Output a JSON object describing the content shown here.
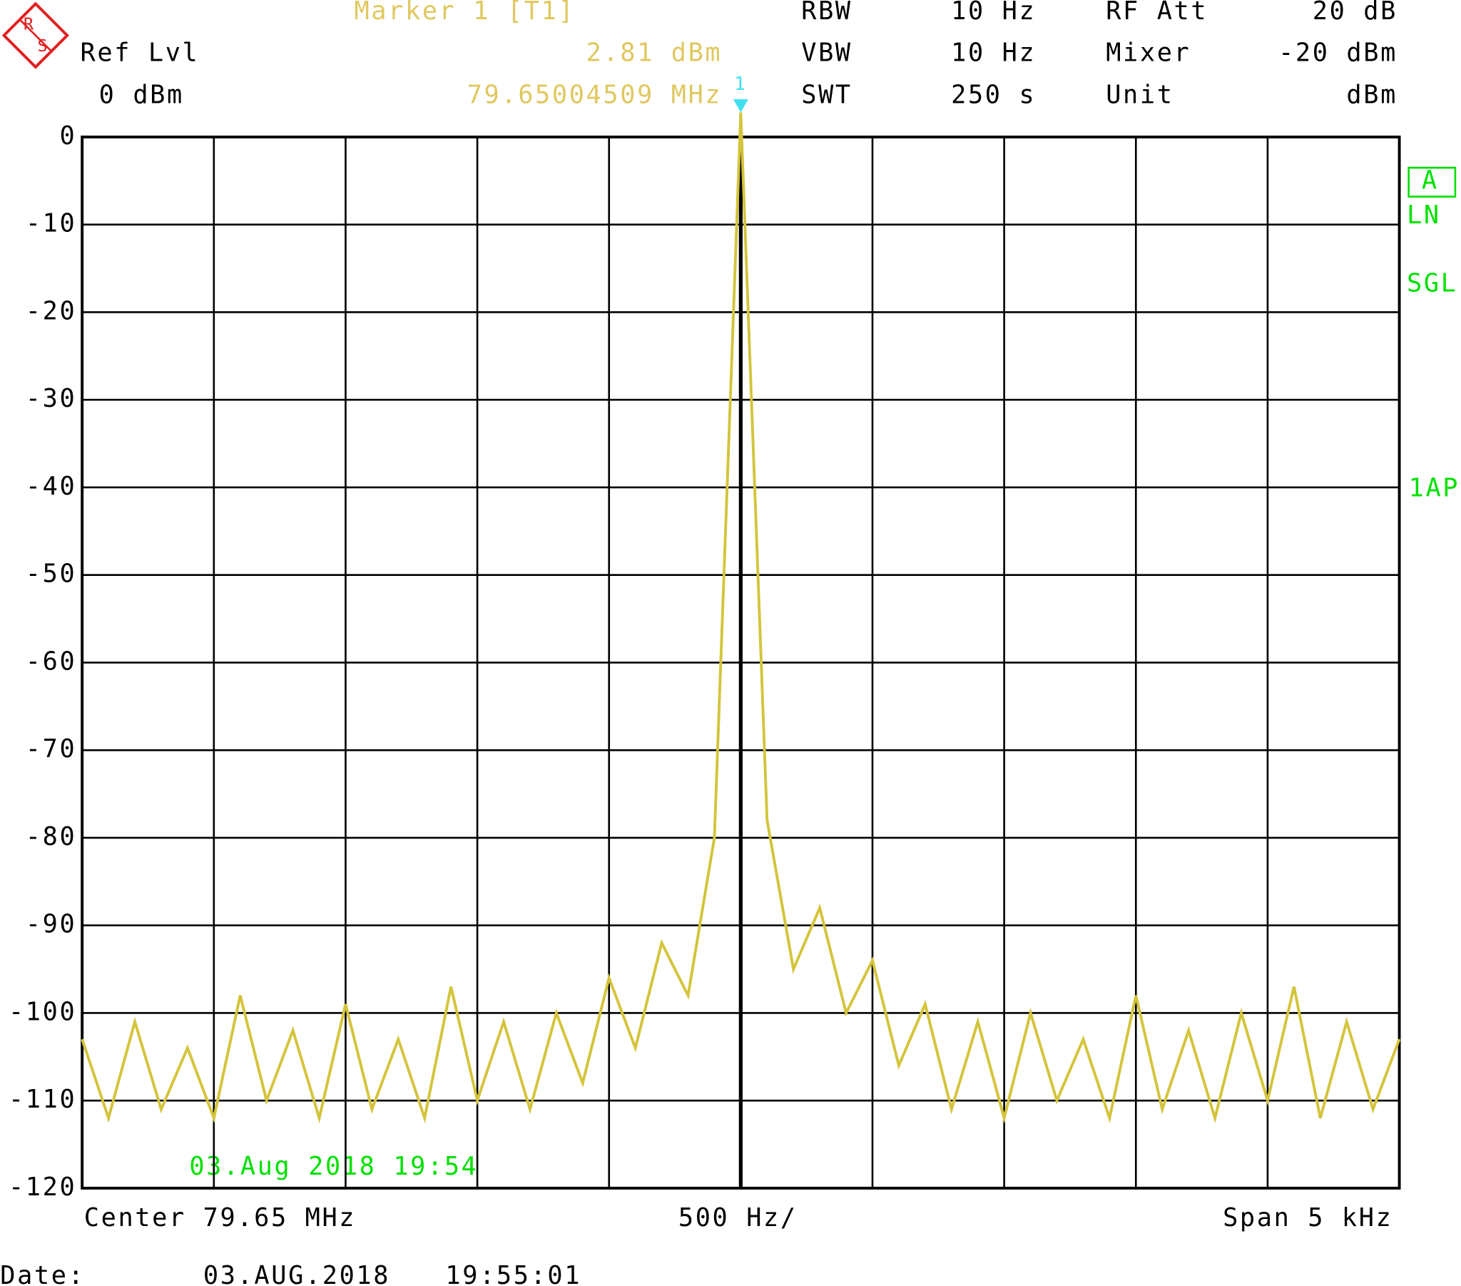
{
  "chart_data": {
    "type": "line",
    "logo": [
      "R",
      "S"
    ],
    "ref_level": {
      "label": "Ref Lvl",
      "value": "0 dBm"
    },
    "marker": {
      "title": "Marker 1 [T1]",
      "level": "2.81 dBm",
      "frequency": "79.65004509 MHz",
      "number": "1",
      "color": "#e0c860",
      "symbol_color": "#40e0f0"
    },
    "settings": [
      {
        "label": "RBW",
        "value": "10 Hz"
      },
      {
        "label": "VBW",
        "value": "10 Hz"
      },
      {
        "label": "SWT",
        "value": "250 s"
      },
      {
        "label": "RF Att",
        "value": "20 dB"
      },
      {
        "label": "Mixer",
        "value": "-20 dBm"
      },
      {
        "label": "Unit",
        "value": "dBm"
      }
    ],
    "side_labels": [
      "A",
      "LN",
      "SGL",
      "1AP"
    ],
    "trace_date": "03.Aug 2018 19:54",
    "center": "Center 79.65 MHz",
    "division": "500 Hz/",
    "span": "Span 5 kHz",
    "footer": {
      "label": "Date:",
      "date": "03.AUG.2018",
      "time": "19:55:01"
    },
    "x": [
      79.6475,
      79.6476,
      79.6477,
      79.6478,
      79.6479,
      79.648,
      79.6481,
      79.6482,
      79.6483,
      79.6484,
      79.6485,
      79.6486,
      79.6487,
      79.6488,
      79.6489,
      79.649,
      79.6491,
      79.6492,
      79.6493,
      79.6494,
      79.6495,
      79.6496,
      79.6497,
      79.6498,
      79.6499,
      79.65,
      79.6501,
      79.6502,
      79.6503,
      79.6504,
      79.6505,
      79.6506,
      79.6507,
      79.6508,
      79.6509,
      79.651,
      79.6511,
      79.6512,
      79.6513,
      79.6514,
      79.6515,
      79.6516,
      79.6517,
      79.6518,
      79.6519,
      79.652,
      79.6521,
      79.6522,
      79.6523,
      79.6524,
      79.6525
    ],
    "values": [
      -103,
      -112,
      -101,
      -111,
      -104,
      -112,
      -98,
      -110,
      -102,
      -112,
      -99,
      -111,
      -103,
      -112,
      -97,
      -110,
      -101,
      -111,
      -100,
      -108,
      -96,
      -104,
      -92,
      -98,
      -80,
      2.81,
      -78,
      -95,
      -88,
      -100,
      -94,
      -106,
      -99,
      -111,
      -101,
      -112,
      -100,
      -110,
      -103,
      -112,
      -98,
      -111,
      -102,
      -112,
      -100,
      -110,
      -97,
      -112,
      -101,
      -111,
      -103
    ],
    "color": "#d4c43c",
    "xlim": [
      79.6475,
      79.6525
    ],
    "ylim": [
      -120,
      0
    ],
    "yticks": [
      0,
      -10,
      -20,
      -30,
      -40,
      -50,
      -60,
      -70,
      -80,
      -90,
      -100,
      -110,
      -120
    ],
    "grid": true
  }
}
